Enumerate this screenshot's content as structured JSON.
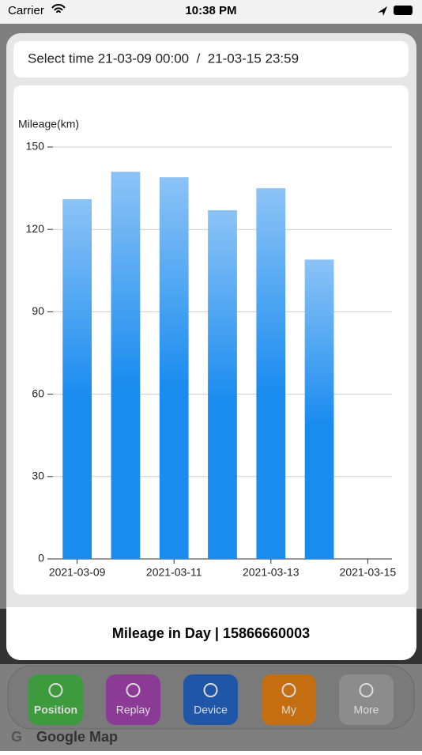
{
  "status_bar": {
    "carrier": "Carrier",
    "time": "10:38 PM"
  },
  "select_time": "Select time 21-03-09 00:00  /  21-03-15 23:59",
  "chart_data": {
    "type": "bar",
    "y_label": "Mileage(km)",
    "categories": [
      "2021-03-09",
      null,
      "2021-03-11",
      null,
      "2021-03-13",
      null,
      "2021-03-15"
    ],
    "values": [
      131,
      141,
      139,
      127,
      135,
      109,
      0
    ],
    "color": "#1a8cef",
    "color_top": "#8cc3f6",
    "ylim": [
      0,
      150
    ],
    "yticks": [
      0,
      30,
      60,
      90,
      120,
      150
    ],
    "grid": true
  },
  "footer_title": "Mileage in Day | 15866660003",
  "tabs": [
    "Position",
    "Replay",
    "Device",
    "My",
    "More"
  ],
  "map_label": "Google Map"
}
